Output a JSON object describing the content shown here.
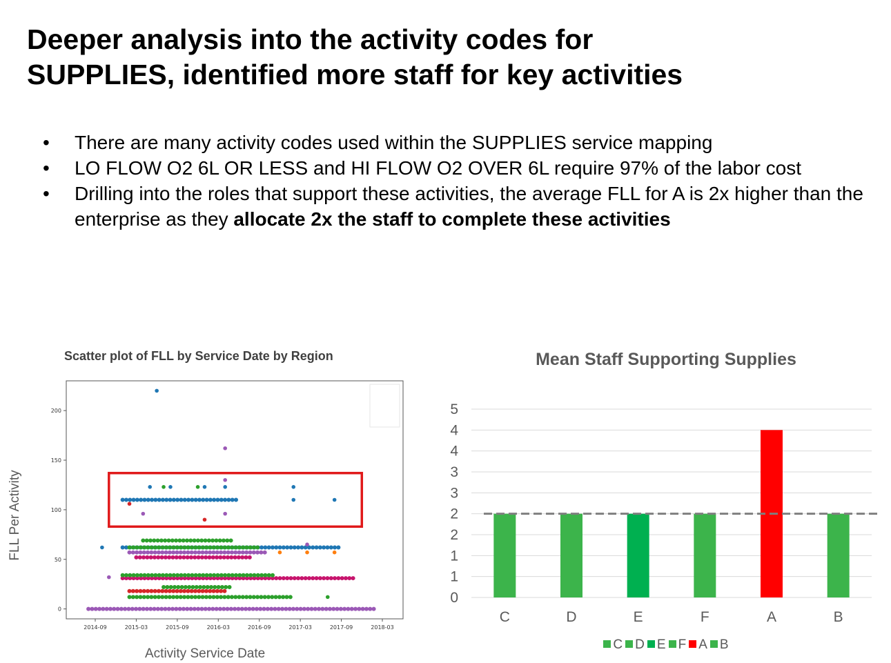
{
  "title_line1": "Deeper analysis into the activity codes for",
  "title_line2": "SUPPLIES, identified more staff for key activities",
  "bullets": [
    {
      "text": "There are many activity codes used within the SUPPLIES service mapping",
      "bold": ""
    },
    {
      "text": "LO FLOW O2 6L OR LESS and HI FLOW O2 OVER 6L require 97% of the labor cost",
      "bold": ""
    },
    {
      "text": "Drilling into the roles that support these activities, the average FLL for A is 2x higher than the enterprise as they ",
      "bold": "allocate 2x the staff to complete these activities"
    }
  ],
  "bullet_char": "•",
  "chart_data": [
    {
      "type": "scatter",
      "title": "Scatter plot of FLL by Service Date by Region",
      "xlabel": "Activity Service Date",
      "ylabel": "FLL Per Activity",
      "x_ticks": [
        "2014-09",
        "2015-03",
        "2015-09",
        "2016-03",
        "2016-09",
        "2017-03",
        "2017-09",
        "2018-03"
      ],
      "y_ticks": [
        0,
        50,
        100,
        150,
        200
      ],
      "ylim": [
        -10,
        230
      ],
      "highlight_box": {
        "x_range": [
          "2014-11",
          "2017-12"
        ],
        "y_range": [
          83,
          137
        ],
        "color": "#e0191a"
      },
      "colors": {
        "blue": "#1f77b4",
        "green": "#2ca02c",
        "red": "#d62728",
        "purple": "#9b59b6",
        "magenta": "#c7156d",
        "orange": "#ff7f0e"
      },
      "bands": [
        {
          "color": "purple",
          "y": 0,
          "x": [
            "2014-08",
            "2018-02"
          ]
        },
        {
          "color": "green",
          "y": 12,
          "x": [
            "2015-02",
            "2017-02"
          ]
        },
        {
          "color": "red",
          "y": 18,
          "x": [
            "2015-02",
            "2016-04"
          ]
        },
        {
          "color": "green",
          "y": 22,
          "x": [
            "2015-07",
            "2016-05"
          ]
        },
        {
          "color": "magenta",
          "y": 31,
          "x": [
            "2015-01",
            "2017-11"
          ]
        },
        {
          "color": "green",
          "y": 34,
          "x": [
            "2015-01",
            "2016-11"
          ]
        },
        {
          "color": "magenta",
          "y": 52,
          "x": [
            "2015-03",
            "2016-08"
          ]
        },
        {
          "color": "purple",
          "y": 57,
          "x": [
            "2015-02",
            "2016-10"
          ]
        },
        {
          "color": "blue",
          "y": 62,
          "x": [
            "2015-01",
            "2017-09"
          ]
        },
        {
          "color": "green",
          "y": 62,
          "x": [
            "2015-02",
            "2016-09"
          ]
        },
        {
          "color": "green",
          "y": 69,
          "x": [
            "2015-04",
            "2016-05"
          ]
        },
        {
          "color": "blue",
          "y": 110,
          "x": [
            "2015-01",
            "2016-06"
          ]
        }
      ],
      "points": [
        {
          "x": "2015-06",
          "y": 220,
          "color": "blue"
        },
        {
          "x": "2016-04",
          "y": 162,
          "color": "purple"
        },
        {
          "x": "2016-04",
          "y": 130,
          "color": "purple"
        },
        {
          "x": "2015-05",
          "y": 123,
          "color": "blue"
        },
        {
          "x": "2015-07",
          "y": 123,
          "color": "green"
        },
        {
          "x": "2015-08",
          "y": 123,
          "color": "blue"
        },
        {
          "x": "2015-12",
          "y": 123,
          "color": "green"
        },
        {
          "x": "2016-01",
          "y": 123,
          "color": "blue"
        },
        {
          "x": "2016-04",
          "y": 123,
          "color": "blue"
        },
        {
          "x": "2017-02",
          "y": 123,
          "color": "blue"
        },
        {
          "x": "2017-02",
          "y": 110,
          "color": "blue"
        },
        {
          "x": "2017-08",
          "y": 110,
          "color": "blue"
        },
        {
          "x": "2015-02",
          "y": 106,
          "color": "red"
        },
        {
          "x": "2015-04",
          "y": 96,
          "color": "purple"
        },
        {
          "x": "2016-04",
          "y": 96,
          "color": "purple"
        },
        {
          "x": "2016-01",
          "y": 90,
          "color": "red"
        },
        {
          "x": "2014-10",
          "y": 62,
          "color": "blue"
        },
        {
          "x": "2017-04",
          "y": 65,
          "color": "purple"
        },
        {
          "x": "2014-11",
          "y": 32,
          "color": "purple"
        },
        {
          "x": "2017-07",
          "y": 12,
          "color": "green"
        },
        {
          "x": "2017-04",
          "y": 57,
          "color": "orange"
        },
        {
          "x": "2017-08",
          "y": 57,
          "color": "orange"
        },
        {
          "x": "2016-12",
          "y": 57,
          "color": "orange"
        }
      ]
    },
    {
      "type": "bar",
      "title": "Mean Staff Supporting Supplies",
      "categories": [
        "C",
        "D",
        "E",
        "F",
        "A",
        "B"
      ],
      "values": [
        2,
        2,
        2,
        2,
        4,
        2
      ],
      "colors": [
        "#3cb44b",
        "#3cb44b",
        "#00b050",
        "#3cb44b",
        "#ff0000",
        "#3cb44b"
      ],
      "y_tick_labels": [
        "0",
        "1",
        "1",
        "2",
        "2",
        "3",
        "3",
        "4",
        "4",
        "5"
      ],
      "ylim": [
        0,
        4.5
      ],
      "reference_line": {
        "value": 2,
        "style": "dashed",
        "color": "#7f7f7f"
      },
      "legend": [
        "C",
        "D",
        "E",
        "F",
        "A",
        "B"
      ],
      "legend_position": "bottom",
      "grid": true
    }
  ]
}
